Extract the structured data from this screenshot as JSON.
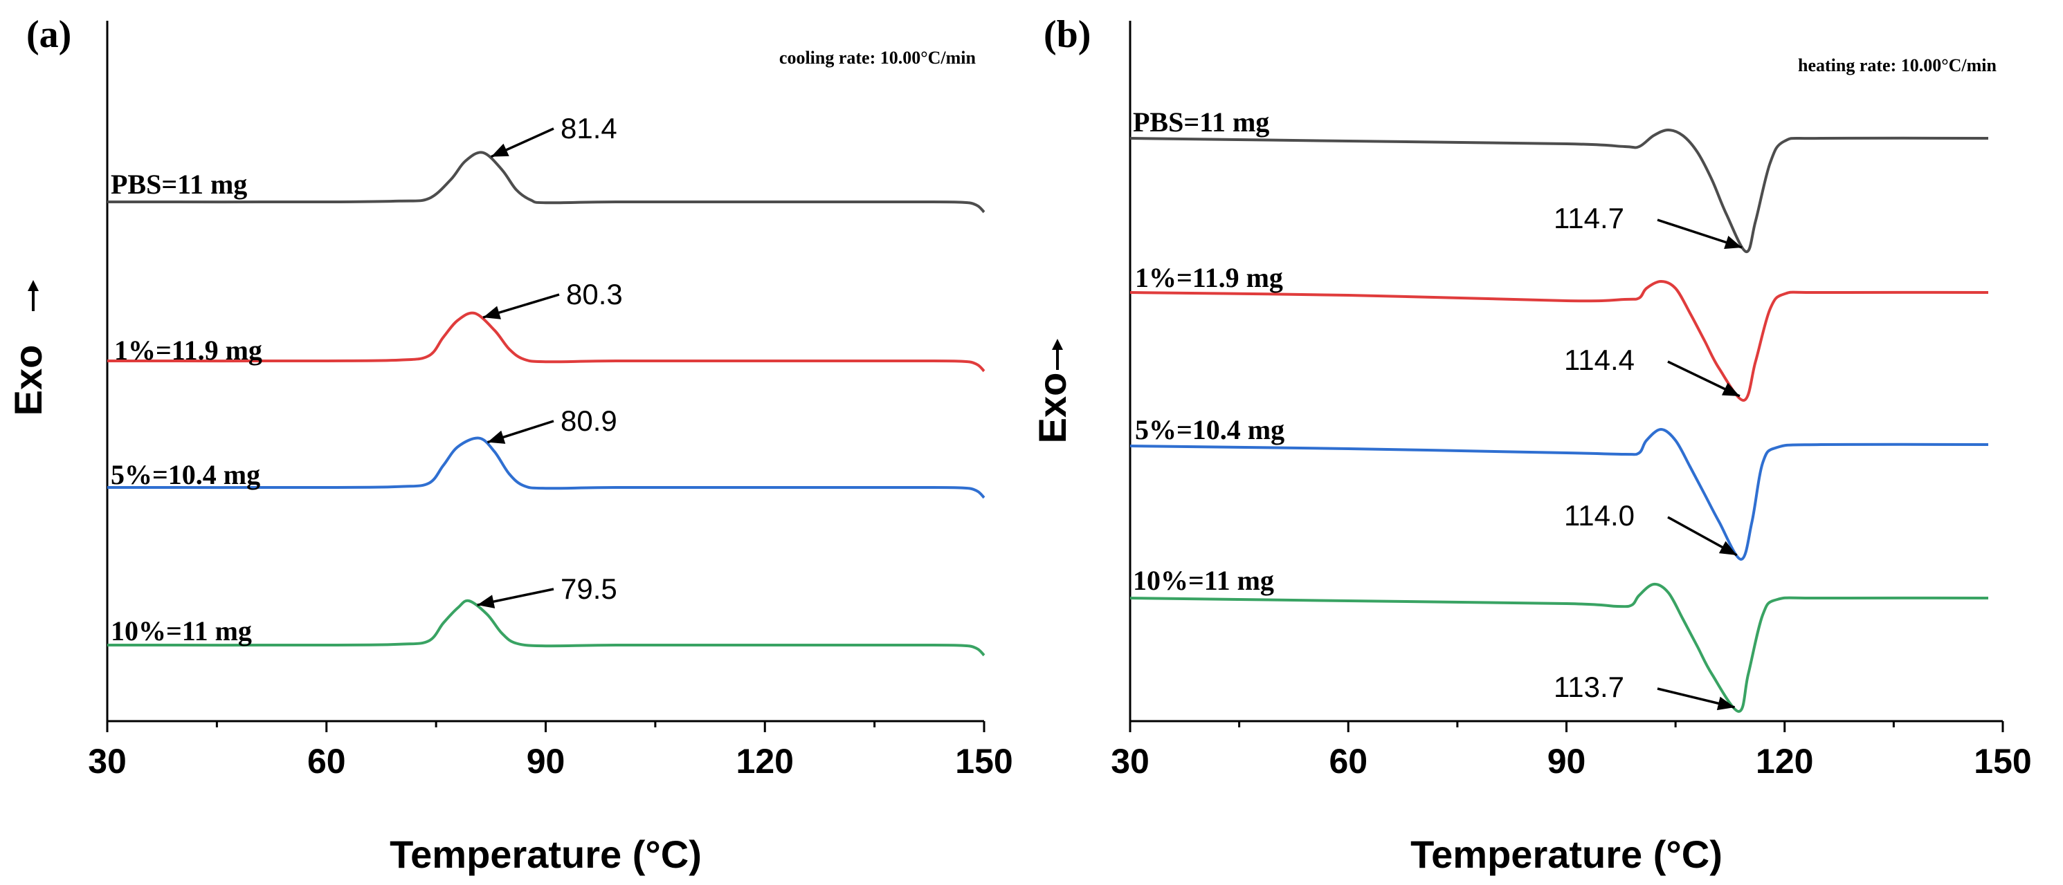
{
  "chart_data": [
    {
      "type": "line",
      "panel_label": "(a)",
      "annotation": "cooling rate: 10.00°C/min",
      "xlabel": "Temperature (°C)",
      "ylabel": "Exo",
      "xlim": [
        30,
        150
      ],
      "xticks": [
        30,
        60,
        90,
        120,
        150
      ],
      "xtick_labels": [
        "30",
        "60",
        "90",
        "120",
        "150"
      ],
      "peak_direction": "up",
      "grid": false,
      "series": [
        {
          "name": "PBS=11 mg",
          "color": "#4d4d4d",
          "peak_x": 81.4,
          "peak_label": "81.4",
          "x": [
            30,
            60,
            70,
            74,
            77,
            79,
            81.4,
            84,
            86,
            88,
            90,
            100,
            120,
            140,
            147,
            149,
            150
          ],
          "y": [
            0,
            0,
            0.01,
            0.04,
            0.26,
            0.48,
            0.58,
            0.38,
            0.14,
            0.02,
            -0.01,
            0,
            0,
            0,
            -0.005,
            -0.04,
            -0.12
          ]
        },
        {
          "name": "1%=11.9 mg",
          "color": "#e03c3c",
          "peak_x": 80.3,
          "peak_label": "80.3",
          "x": [
            30,
            60,
            70,
            74,
            76,
            78,
            80.3,
            83,
            85,
            87,
            90,
            100,
            120,
            140,
            147,
            149,
            150
          ],
          "y": [
            0,
            0,
            0.01,
            0.06,
            0.28,
            0.48,
            0.56,
            0.36,
            0.14,
            0.02,
            -0.01,
            0,
            0,
            0,
            -0.005,
            -0.04,
            -0.12
          ]
        },
        {
          "name": "5%=10.4 mg",
          "color": "#2f6fd1",
          "peak_x": 80.9,
          "peak_label": "80.9",
          "x": [
            30,
            60,
            70,
            74,
            76,
            78,
            80.9,
            83,
            85,
            87,
            90,
            100,
            120,
            140,
            147,
            149,
            150
          ],
          "y": [
            0,
            0,
            0.01,
            0.05,
            0.26,
            0.48,
            0.58,
            0.42,
            0.16,
            0.02,
            -0.01,
            0,
            0,
            0,
            -0.005,
            -0.04,
            -0.12
          ]
        },
        {
          "name": "10%=11 mg",
          "color": "#39a363",
          "peak_x": 79.5,
          "peak_label": "79.5",
          "x": [
            30,
            60,
            70,
            74,
            76,
            78,
            79.5,
            82,
            84,
            86,
            90,
            100,
            120,
            140,
            147,
            149,
            150
          ],
          "y": [
            0,
            0,
            0.01,
            0.05,
            0.26,
            0.44,
            0.52,
            0.36,
            0.14,
            0.02,
            -0.01,
            0,
            0,
            0,
            -0.005,
            -0.04,
            -0.12
          ]
        }
      ]
    },
    {
      "type": "line",
      "panel_label": "(b)",
      "annotation": "heating rate: 10.00°C/min",
      "xlabel": "Temperature (°C)",
      "ylabel": "Exo",
      "xlim": [
        30,
        150
      ],
      "xticks": [
        30,
        60,
        90,
        120,
        150
      ],
      "xtick_labels": [
        "30",
        "60",
        "90",
        "120",
        "150"
      ],
      "peak_direction": "down",
      "grid": false,
      "series": [
        {
          "name": "PBS=11 mg",
          "color": "#4d4d4d",
          "peak_x": 114.7,
          "peak_label": "114.7",
          "x": [
            30,
            60,
            90,
            98,
            100,
            102,
            104,
            106,
            108,
            110,
            112,
            114.7,
            116,
            118,
            120,
            125,
            148
          ],
          "y": [
            0,
            -0.02,
            -0.04,
            -0.06,
            -0.06,
            0.02,
            0.06,
            0.02,
            -0.1,
            -0.3,
            -0.55,
            -0.82,
            -0.6,
            -0.18,
            -0.02,
            0,
            0
          ]
        },
        {
          "name": "1%=11.9 mg",
          "color": "#e03c3c",
          "peak_x": 114.4,
          "peak_label": "114.4",
          "x": [
            30,
            60,
            90,
            98,
            100,
            101,
            103,
            105,
            107,
            109,
            111,
            114.4,
            116,
            118,
            120,
            125,
            148
          ],
          "y": [
            0,
            -0.02,
            -0.06,
            -0.05,
            -0.04,
            0.03,
            0.08,
            0.03,
            -0.15,
            -0.35,
            -0.55,
            -0.78,
            -0.5,
            -0.12,
            -0.01,
            0,
            0
          ]
        },
        {
          "name": "5%=10.4 mg",
          "color": "#2f6fd1",
          "peak_x": 114.0,
          "peak_label": "114.0",
          "x": [
            30,
            60,
            90,
            98,
            100,
            101,
            103,
            105,
            107,
            109,
            111,
            114.0,
            115.5,
            117,
            119,
            125,
            148
          ],
          "y": [
            0,
            -0.02,
            -0.05,
            -0.06,
            -0.05,
            0.04,
            0.12,
            0.04,
            -0.15,
            -0.35,
            -0.55,
            -0.82,
            -0.55,
            -0.12,
            -0.01,
            0.01,
            0.01
          ]
        },
        {
          "name": "10%=11 mg",
          "color": "#39a363",
          "peak_x": 113.7,
          "peak_label": "113.7",
          "x": [
            30,
            60,
            90,
            97,
            99,
            100,
            102,
            104,
            106,
            108,
            110,
            113.7,
            115,
            117,
            119,
            125,
            148
          ],
          "y": [
            0,
            -0.02,
            -0.04,
            -0.06,
            -0.05,
            0.02,
            0.1,
            0.04,
            -0.15,
            -0.35,
            -0.55,
            -0.82,
            -0.55,
            -0.12,
            -0.01,
            0,
            0
          ]
        }
      ]
    }
  ]
}
